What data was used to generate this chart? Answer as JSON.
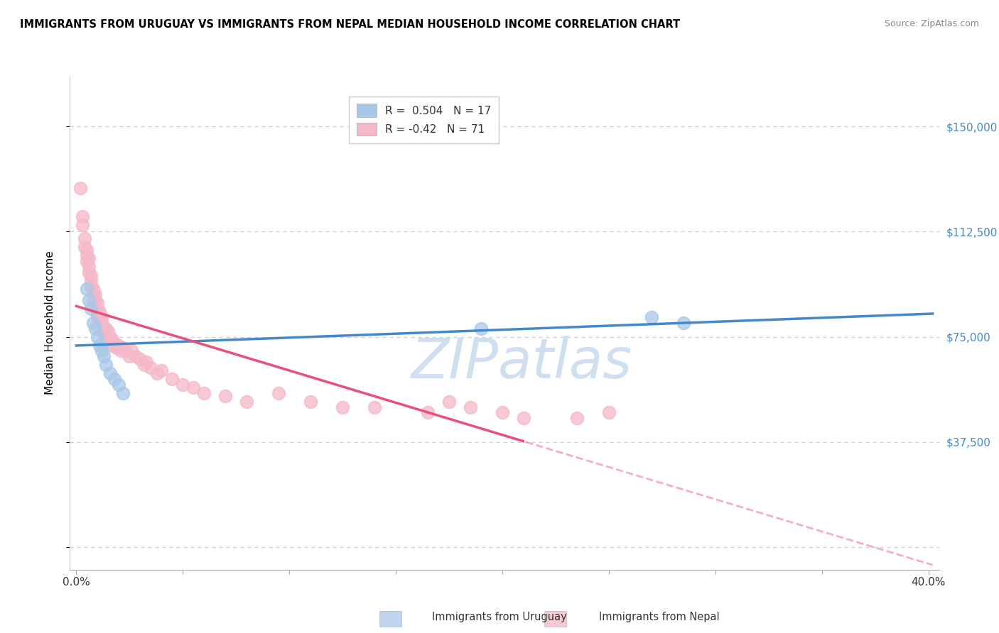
{
  "title": "IMMIGRANTS FROM URUGUAY VS IMMIGRANTS FROM NEPAL MEDIAN HOUSEHOLD INCOME CORRELATION CHART",
  "source": "Source: ZipAtlas.com",
  "ylabel": "Median Household Income",
  "ytick_vals": [
    0,
    37500,
    75000,
    112500,
    150000
  ],
  "ytick_labels": [
    "",
    "$37,500",
    "$75,000",
    "$112,500",
    "$150,000"
  ],
  "xlim": [
    -0.003,
    0.405
  ],
  "ylim": [
    -8000,
    168000
  ],
  "R_uruguay": 0.504,
  "N_uruguay": 17,
  "R_nepal": -0.42,
  "N_nepal": 71,
  "uruguay_color": "#a8c8e8",
  "nepal_color": "#f5b8c8",
  "trend_blue": "#4488cc",
  "trend_pink": "#e8507a",
  "watermark_color": "#d0dff0",
  "legend_r_color": "#3366cc",
  "legend_n_color": "#3366cc",
  "uruguay_x": [
    0.005,
    0.006,
    0.007,
    0.008,
    0.009,
    0.01,
    0.011,
    0.012,
    0.013,
    0.014,
    0.016,
    0.018,
    0.02,
    0.022,
    0.19,
    0.27,
    0.285
  ],
  "uruguay_y": [
    92000,
    88000,
    85000,
    80000,
    78000,
    75000,
    72000,
    70000,
    68000,
    65000,
    62000,
    60000,
    58000,
    55000,
    78000,
    82000,
    80000
  ],
  "nepal_x": [
    0.002,
    0.003,
    0.003,
    0.004,
    0.004,
    0.005,
    0.005,
    0.005,
    0.006,
    0.006,
    0.006,
    0.007,
    0.007,
    0.007,
    0.008,
    0.008,
    0.008,
    0.009,
    0.009,
    0.009,
    0.01,
    0.01,
    0.01,
    0.01,
    0.011,
    0.011,
    0.012,
    0.012,
    0.012,
    0.013,
    0.013,
    0.014,
    0.014,
    0.015,
    0.015,
    0.016,
    0.016,
    0.017,
    0.017,
    0.018,
    0.019,
    0.02,
    0.021,
    0.022,
    0.023,
    0.025,
    0.026,
    0.028,
    0.03,
    0.032,
    0.033,
    0.035,
    0.038,
    0.04,
    0.045,
    0.05,
    0.055,
    0.06,
    0.07,
    0.08,
    0.095,
    0.11,
    0.125,
    0.14,
    0.165,
    0.175,
    0.185,
    0.2,
    0.21,
    0.235,
    0.25
  ],
  "nepal_y": [
    128000,
    118000,
    115000,
    110000,
    107000,
    106000,
    104000,
    102000,
    103000,
    100000,
    98000,
    97000,
    95000,
    93000,
    92000,
    90000,
    88000,
    90000,
    88000,
    86000,
    87000,
    85000,
    83000,
    82000,
    84000,
    82000,
    80000,
    82000,
    80000,
    78000,
    76000,
    78000,
    75000,
    77000,
    74000,
    75000,
    73000,
    74000,
    72000,
    73000,
    71000,
    72000,
    70000,
    71000,
    70000,
    68000,
    70000,
    68000,
    67000,
    65000,
    66000,
    64000,
    62000,
    63000,
    60000,
    58000,
    57000,
    55000,
    54000,
    52000,
    55000,
    52000,
    50000,
    50000,
    48000,
    52000,
    50000,
    48000,
    46000,
    46000,
    48000
  ]
}
